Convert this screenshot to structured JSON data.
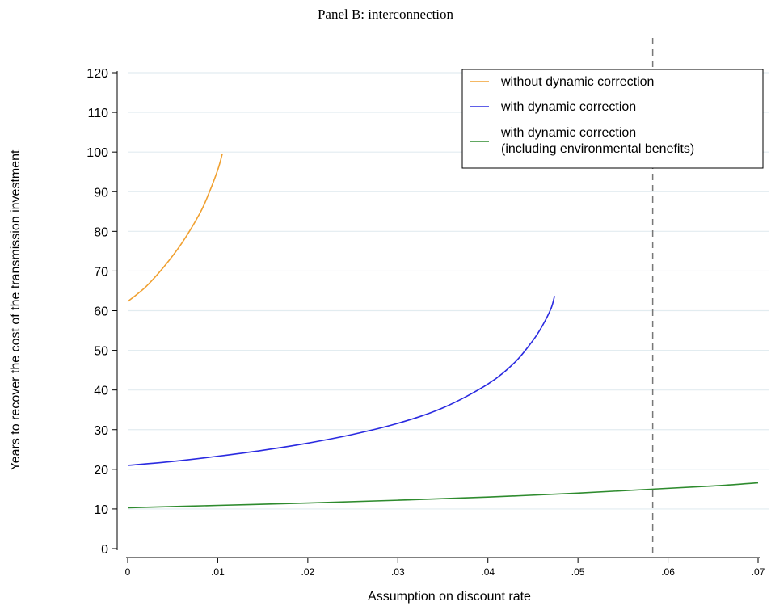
{
  "chart_data": {
    "type": "line",
    "title": "Panel B: interconnection",
    "xlabel": "Assumption on discount rate",
    "ylabel": "Years to recover the cost of the transmission investment",
    "xlim": [
      0,
      0.07
    ],
    "ylim": [
      0,
      120
    ],
    "x_ticks": [
      {
        "value": 0,
        "label": "0"
      },
      {
        "value": 0.01,
        "label": ".01"
      },
      {
        "value": 0.02,
        "label": ".02"
      },
      {
        "value": 0.03,
        "label": ".03"
      },
      {
        "value": 0.04,
        "label": ".04"
      },
      {
        "value": 0.05,
        "label": ".05"
      },
      {
        "value": 0.06,
        "label": ".06"
      },
      {
        "value": 0.07,
        "label": ".07"
      }
    ],
    "y_ticks": [
      0,
      10,
      20,
      30,
      40,
      50,
      60,
      70,
      80,
      90,
      100,
      110,
      120
    ],
    "grid": "horizontal",
    "legend_position": "top-right",
    "reference_line": {
      "x": 0.0583,
      "style": "dashed",
      "color": "#777777"
    },
    "series": [
      {
        "name": "without dynamic correction",
        "color": "#f0a030",
        "points": [
          [
            0,
            62.3
          ],
          [
            0.002,
            66.0
          ],
          [
            0.004,
            71.0
          ],
          [
            0.006,
            77.0
          ],
          [
            0.008,
            84.5
          ],
          [
            0.009,
            89.5
          ],
          [
            0.01,
            95.5
          ],
          [
            0.0105,
            99.5
          ]
        ]
      },
      {
        "name": "with dynamic correction",
        "color": "#2a2ae0",
        "points": [
          [
            0,
            21.0
          ],
          [
            0.005,
            22.0
          ],
          [
            0.01,
            23.3
          ],
          [
            0.015,
            24.8
          ],
          [
            0.02,
            26.6
          ],
          [
            0.025,
            28.8
          ],
          [
            0.03,
            31.6
          ],
          [
            0.035,
            35.5
          ],
          [
            0.04,
            41.5
          ],
          [
            0.043,
            47.0
          ],
          [
            0.045,
            52.5
          ],
          [
            0.046,
            56.0
          ],
          [
            0.047,
            60.5
          ],
          [
            0.0474,
            63.7
          ]
        ]
      },
      {
        "name": "with dynamic correction\n(including environmental benefits)",
        "legend_lines": [
          "with dynamic correction",
          "(including environmental benefits)"
        ],
        "color": "#2e8b2e",
        "points": [
          [
            0,
            10.3
          ],
          [
            0.01,
            10.9
          ],
          [
            0.02,
            11.5
          ],
          [
            0.03,
            12.2
          ],
          [
            0.04,
            13.0
          ],
          [
            0.05,
            14.0
          ],
          [
            0.0583,
            15.0
          ],
          [
            0.065,
            15.8
          ],
          [
            0.07,
            16.6
          ]
        ]
      }
    ]
  }
}
